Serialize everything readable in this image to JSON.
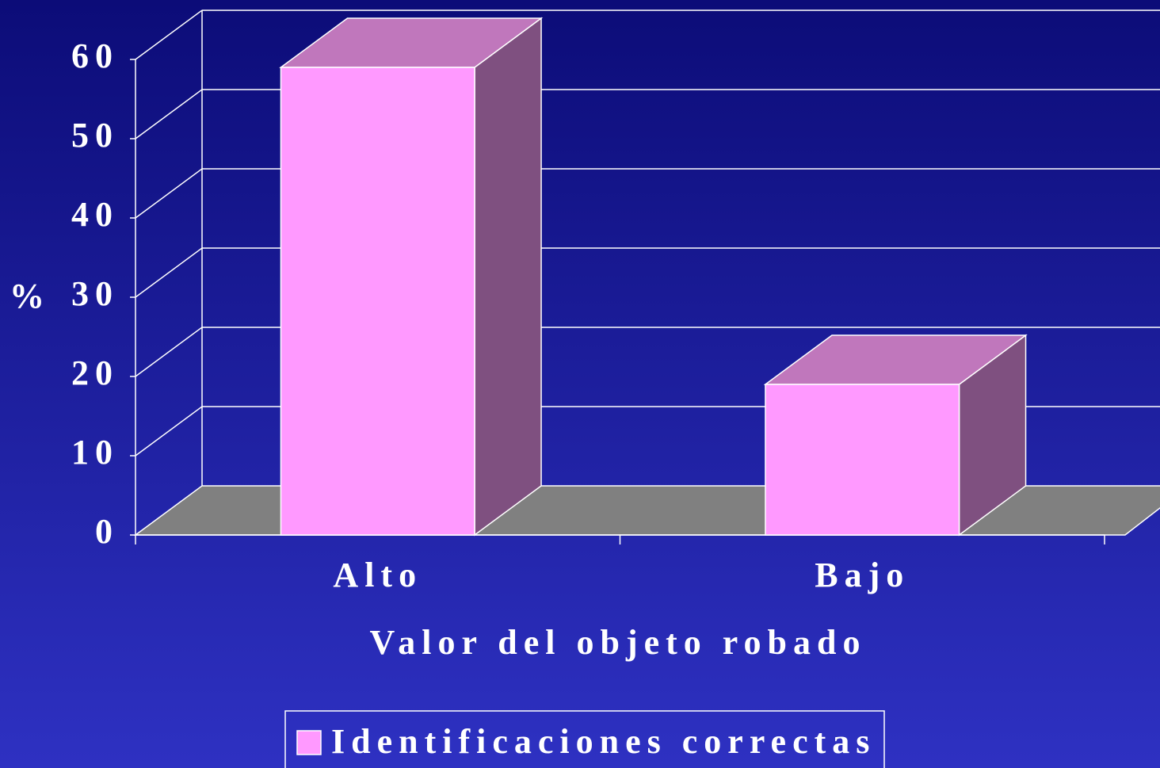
{
  "chart_data": {
    "type": "bar",
    "categories": [
      "Alto",
      "Bajo"
    ],
    "series": [
      {
        "name": "Identificaciones correctas",
        "color": "#ff99ff",
        "values": [
          59,
          19
        ]
      }
    ],
    "y_label": "%",
    "x_label": "Valor del objeto robado",
    "ylim": [
      0,
      60
    ],
    "yticks": [
      0,
      10,
      20,
      30,
      40,
      50,
      60
    ],
    "grid": true
  }
}
